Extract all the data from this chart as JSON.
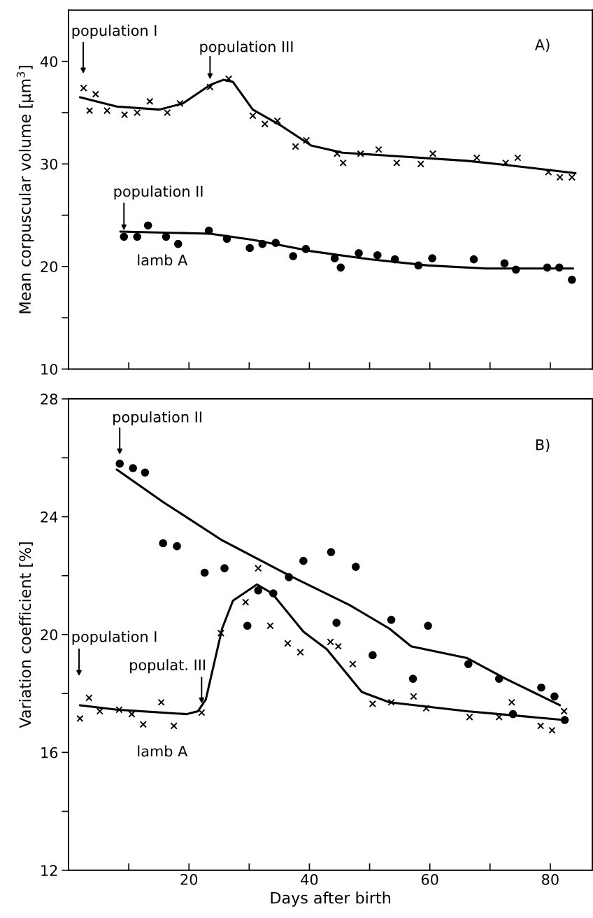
{
  "chart_data": [
    {
      "type": "scatter",
      "ylabel": "Mean corpuscular volume [µm$^{3}$]",
      "xlim": [
        0,
        87
      ],
      "ylim": [
        10,
        45
      ],
      "xticks": [
        {
          "value": 10,
          "label": null
        },
        {
          "value": 20,
          "label": null
        },
        {
          "value": 30,
          "label": null
        },
        {
          "value": 40,
          "label": null
        },
        {
          "value": 50,
          "label": null
        },
        {
          "value": 60,
          "label": null
        },
        {
          "value": 70,
          "label": null
        },
        {
          "value": 80,
          "label": null
        }
      ],
      "yticks": [
        10,
        {
          "value": 15,
          "label": null
        },
        20,
        {
          "value": 25,
          "label": null
        },
        30,
        {
          "value": 35,
          "label": null
        },
        40
      ],
      "tick_labels": "y",
      "grid": false,
      "legend": false,
      "series": [
        {
          "marker": "cross",
          "color": "#000000",
          "x": [
            2.5,
            3.5,
            4.5,
            6.4,
            9.3,
            11.4,
            13.5,
            16.4,
            18.5,
            23.5,
            26.6,
            30.6,
            32.6,
            34.7,
            37.7,
            39.5,
            44.6,
            45.6,
            48.5,
            51.5,
            54.5,
            58.5,
            60.5,
            67.8,
            72.6,
            74.6,
            79.7,
            81.6,
            83.6
          ],
          "values": [
            37.4,
            35.2,
            36.8,
            35.2,
            34.8,
            35.0,
            36.1,
            35.0,
            35.9,
            37.5,
            38.3,
            34.7,
            33.9,
            34.2,
            31.7,
            32.3,
            31.0,
            30.1,
            31.0,
            31.4,
            30.1,
            30.0,
            31.0,
            30.6,
            30.1,
            30.6,
            29.2,
            28.7,
            28.7
          ]
        },
        {
          "type": "line",
          "marker": "none",
          "line_style": "solid",
          "color": "#000000",
          "x": [
            1.9,
            8.0,
            15.1,
            19.0,
            23.5,
            25.7,
            27.3,
            30.6,
            35.1,
            40.3,
            45.5,
            53.2,
            66.2,
            72.6,
            84.2
          ],
          "values": [
            36.5,
            35.6,
            35.3,
            35.9,
            37.7,
            38.2,
            38.0,
            35.3,
            33.8,
            31.8,
            31.1,
            30.8,
            30.3,
            29.9,
            29.1
          ]
        },
        {
          "marker": "circle",
          "color": "#000000",
          "x": [
            9.2,
            11.4,
            13.2,
            16.2,
            18.2,
            23.3,
            26.3,
            30.1,
            32.2,
            34.4,
            37.3,
            39.4,
            44.2,
            45.2,
            48.2,
            51.3,
            54.2,
            58.1,
            60.4,
            67.3,
            72.4,
            74.3,
            79.5,
            81.5,
            83.6
          ],
          "values": [
            22.9,
            22.9,
            24.0,
            22.9,
            22.2,
            23.5,
            22.7,
            21.8,
            22.2,
            22.3,
            21.0,
            21.7,
            20.8,
            19.9,
            21.3,
            21.1,
            20.7,
            20.1,
            20.8,
            20.7,
            20.3,
            19.7,
            19.9,
            19.9,
            18.7
          ]
        },
        {
          "type": "line",
          "marker": "none",
          "line_style": "solid",
          "color": "#000000",
          "x": [
            8.6,
            23.5,
            30.6,
            40.2,
            50.0,
            59.7,
            69.3,
            83.8
          ],
          "values": [
            23.4,
            23.2,
            22.6,
            21.5,
            20.7,
            20.1,
            19.8,
            19.8
          ]
        }
      ],
      "annotations": [
        "population I",
        {
          "text": "population III",
          "x": 23.5,
          "y": 37.5
        },
        {
          "text": "population II",
          "x": 9.2,
          "y": 22.9
        },
        "lamb A",
        "A)"
      ]
    },
    {
      "type": "scatter",
      "xlabel": "Days after birth",
      "ylabel": "Variation coefficient [%]",
      "xlim": [
        0,
        87
      ],
      "ylim": [
        12,
        28
      ],
      "xticks": [
        {
          "value": 10,
          "label": null
        },
        20,
        {
          "value": 30,
          "label": null
        },
        40,
        {
          "value": 50,
          "label": null
        },
        60,
        {
          "value": 70,
          "label": null
        },
        80
      ],
      "yticks": [
        12,
        {
          "value": 14,
          "label": null
        },
        16,
        {
          "value": 18,
          "label": null
        },
        20,
        {
          "value": 22,
          "label": null
        },
        24,
        {
          "value": 26,
          "label": null
        },
        28
      ],
      "grid": false,
      "legend": false,
      "series": [
        {
          "marker": "circle",
          "color": "#000000",
          "x": [
            8.5,
            10.7,
            12.7,
            15.7,
            18.0,
            22.6,
            25.9,
            29.7,
            31.5,
            34.0,
            36.6,
            39.0,
            43.6,
            44.5,
            47.7,
            50.5,
            53.6,
            57.2,
            59.7,
            66.4,
            71.5,
            73.8,
            78.5,
            80.7,
            82.4
          ],
          "values": [
            25.8,
            25.65,
            25.5,
            23.1,
            23.0,
            22.1,
            22.25,
            20.3,
            21.5,
            21.4,
            21.95,
            22.5,
            22.8,
            20.4,
            22.3,
            19.3,
            20.5,
            18.5,
            20.3,
            19.0,
            18.5,
            17.3,
            18.2,
            17.9,
            17.1
          ]
        },
        {
          "type": "line",
          "marker": "none",
          "line_style": "solid",
          "color": "#000000",
          "x": [
            8.0,
            15.7,
            25.5,
            36.7,
            46.7,
            53.3,
            56.9,
            66.2,
            72.6,
            81.6
          ],
          "values": [
            25.6,
            24.5,
            23.2,
            22.0,
            21.0,
            20.2,
            19.6,
            19.2,
            18.5,
            17.6
          ]
        },
        {
          "marker": "cross",
          "color": "#000000",
          "x": [
            1.9,
            3.4,
            5.2,
            8.4,
            10.5,
            12.4,
            15.4,
            17.5,
            22.1,
            25.3,
            29.4,
            31.5,
            33.5,
            36.4,
            38.5,
            43.5,
            44.8,
            47.2,
            50.5,
            53.6,
            57.3,
            59.4,
            66.6,
            71.5,
            73.6,
            78.4,
            80.3,
            82.3
          ],
          "values": [
            17.15,
            17.85,
            17.4,
            17.45,
            17.3,
            16.95,
            17.7,
            16.9,
            17.35,
            20.05,
            21.1,
            22.25,
            20.3,
            19.7,
            19.4,
            19.75,
            19.6,
            19.0,
            17.65,
            17.7,
            17.9,
            17.5,
            17.2,
            17.2,
            17.7,
            16.9,
            16.75,
            17.4
          ]
        },
        {
          "type": "line",
          "marker": "none",
          "line_style": "solid",
          "color": "#000000",
          "x": [
            1.9,
            8.0,
            19.6,
            21.5,
            22.8,
            25.5,
            27.3,
            31.3,
            33.8,
            39.0,
            42.9,
            48.7,
            53.3,
            66.2,
            82.3
          ],
          "values": [
            17.6,
            17.45,
            17.3,
            17.4,
            17.8,
            20.2,
            21.15,
            21.7,
            21.4,
            20.1,
            19.5,
            18.05,
            17.7,
            17.4,
            17.1
          ]
        }
      ],
      "annotations": [
        {
          "text": "population II",
          "x": 8.5,
          "y": 25.8
        },
        "population I",
        {
          "text": "populat. III",
          "x": 22.1,
          "y": 17.35
        },
        "lamb A",
        "B)"
      ]
    }
  ]
}
